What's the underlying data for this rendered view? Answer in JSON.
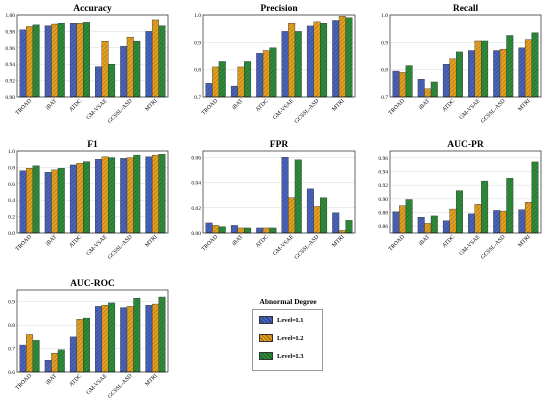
{
  "legend": {
    "title": "Abnormal Degree",
    "items": [
      {
        "label": "Level=L1",
        "color": "#4a63b8",
        "pattern": "hatch"
      },
      {
        "label": "Level=L2",
        "color": "#e0a020",
        "pattern": "hatch"
      },
      {
        "label": "Level=L3",
        "color": "#2e8b3a",
        "pattern": "hatch"
      }
    ]
  },
  "chart_data": [
    {
      "type": "bar",
      "title": "Accuracy",
      "categories": [
        "TROAD",
        "iBAT",
        "ATDC",
        "GM-VSAE",
        "GCSSL-ASD",
        "MTRI"
      ],
      "ylim": [
        0.9,
        1.0
      ],
      "yticks": [
        0.9,
        0.92,
        0.94,
        0.96,
        0.98,
        1.0
      ],
      "ytick_labels": [
        "0.90",
        "0.92",
        "0.94",
        "0.96",
        "0.98",
        "1.00"
      ],
      "series": [
        {
          "name": "Level=L1",
          "values": [
            0.982,
            0.987,
            0.99,
            0.937,
            0.962,
            0.98
          ]
        },
        {
          "name": "Level=L2",
          "values": [
            0.986,
            0.989,
            0.99,
            0.968,
            0.973,
            0.994
          ]
        },
        {
          "name": "Level=L3",
          "values": [
            0.988,
            0.99,
            0.991,
            0.94,
            0.968,
            0.987
          ]
        }
      ]
    },
    {
      "type": "bar",
      "title": "Precision",
      "categories": [
        "TROAD",
        "iBAT",
        "ATDC",
        "GM-VSAE",
        "GCSSL-ASD",
        "MTRI"
      ],
      "ylim": [
        0.7,
        1.0
      ],
      "yticks": [
        0.7,
        0.8,
        0.9,
        1.0
      ],
      "ytick_labels": [
        "0.7",
        "0.8",
        "0.9",
        "1.0"
      ],
      "series": [
        {
          "name": "Level=L1",
          "values": [
            0.75,
            0.74,
            0.86,
            0.94,
            0.96,
            0.98
          ]
        },
        {
          "name": "Level=L2",
          "values": [
            0.81,
            0.81,
            0.87,
            0.97,
            0.975,
            0.995
          ]
        },
        {
          "name": "Level=L3",
          "values": [
            0.83,
            0.83,
            0.88,
            0.94,
            0.97,
            0.99
          ]
        }
      ]
    },
    {
      "type": "bar",
      "title": "Recall",
      "categories": [
        "TROAD",
        "iBAT",
        "ATDC",
        "GM-VSAE",
        "GCSSL-ASD",
        "MTRI"
      ],
      "ylim": [
        0.7,
        1.0
      ],
      "yticks": [
        0.7,
        0.8,
        0.9,
        1.0
      ],
      "ytick_labels": [
        "0.7",
        "0.8",
        "0.9",
        "1.0"
      ],
      "series": [
        {
          "name": "Level=L1",
          "values": [
            0.795,
            0.765,
            0.82,
            0.87,
            0.87,
            0.88
          ]
        },
        {
          "name": "Level=L2",
          "values": [
            0.79,
            0.73,
            0.84,
            0.905,
            0.875,
            0.91
          ]
        },
        {
          "name": "Level=L3",
          "values": [
            0.815,
            0.755,
            0.865,
            0.905,
            0.925,
            0.935
          ]
        }
      ]
    },
    {
      "type": "bar",
      "title": "F1",
      "categories": [
        "TROAD",
        "iBAT",
        "ATDC",
        "GM-VSAE",
        "GCSSL-ASD",
        "MTRI"
      ],
      "ylim": [
        0.0,
        1.0
      ],
      "yticks": [
        0.0,
        0.2,
        0.4,
        0.6,
        0.8,
        1.0
      ],
      "ytick_labels": [
        "0.0",
        "0.2",
        "0.4",
        "0.6",
        "0.8",
        "1.0"
      ],
      "series": [
        {
          "name": "Level=L1",
          "values": [
            0.76,
            0.74,
            0.83,
            0.9,
            0.91,
            0.93
          ]
        },
        {
          "name": "Level=L2",
          "values": [
            0.79,
            0.77,
            0.85,
            0.93,
            0.92,
            0.95
          ]
        },
        {
          "name": "Level=L3",
          "values": [
            0.82,
            0.79,
            0.87,
            0.92,
            0.95,
            0.96
          ]
        }
      ]
    },
    {
      "type": "bar",
      "title": "FPR",
      "categories": [
        "TROAD",
        "iBAT",
        "ATDC",
        "GM-VSAE",
        "GCSSL-ASD",
        "MTRI"
      ],
      "ylim": [
        0.0,
        0.065
      ],
      "yticks": [
        0.0,
        0.02,
        0.04,
        0.06
      ],
      "ytick_labels": [
        "0.00",
        "0.02",
        "0.04",
        "0.06"
      ],
      "series": [
        {
          "name": "Level=L1",
          "values": [
            0.008,
            0.006,
            0.004,
            0.06,
            0.035,
            0.016
          ]
        },
        {
          "name": "Level=L2",
          "values": [
            0.006,
            0.004,
            0.004,
            0.028,
            0.021,
            0.002
          ]
        },
        {
          "name": "Level=L3",
          "values": [
            0.005,
            0.004,
            0.004,
            0.058,
            0.028,
            0.01
          ]
        }
      ]
    },
    {
      "type": "bar",
      "title": "AUC-PR",
      "categories": [
        "TROAD",
        "iBAT",
        "ATDC",
        "GM-VSAE",
        "GCSSL-ASD",
        "MTRI"
      ],
      "ylim": [
        0.85,
        0.97
      ],
      "yticks": [
        0.86,
        0.88,
        0.9,
        0.92,
        0.94,
        0.96
      ],
      "ytick_labels": [
        "0.86",
        "0.88",
        "0.90",
        "0.92",
        "0.94",
        "0.96"
      ],
      "series": [
        {
          "name": "Level=L1",
          "values": [
            0.881,
            0.873,
            0.868,
            0.878,
            0.883,
            0.884
          ]
        },
        {
          "name": "Level=L2",
          "values": [
            0.89,
            0.864,
            0.885,
            0.892,
            0.882,
            0.895
          ]
        },
        {
          "name": "Level=L3",
          "values": [
            0.899,
            0.875,
            0.912,
            0.926,
            0.93,
            0.954
          ]
        }
      ]
    },
    {
      "type": "bar",
      "title": "AUC-ROC",
      "categories": [
        "TROAD",
        "iBAT",
        "ATDC",
        "GM-VSAE",
        "GCSSL-ASD",
        "MTRI"
      ],
      "ylim": [
        0.6,
        0.95
      ],
      "yticks": [
        0.6,
        0.7,
        0.8,
        0.9
      ],
      "ytick_labels": [
        "0.6",
        "0.7",
        "0.8",
        "0.9"
      ],
      "series": [
        {
          "name": "Level=L1",
          "values": [
            0.715,
            0.65,
            0.75,
            0.88,
            0.875,
            0.885
          ]
        },
        {
          "name": "Level=L2",
          "values": [
            0.76,
            0.68,
            0.825,
            0.885,
            0.88,
            0.89
          ]
        },
        {
          "name": "Level=L3",
          "values": [
            0.735,
            0.695,
            0.83,
            0.895,
            0.915,
            0.92
          ]
        }
      ]
    }
  ]
}
